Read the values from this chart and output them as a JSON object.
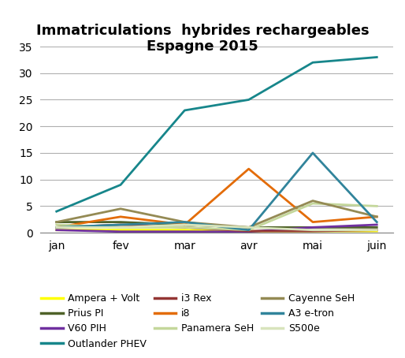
{
  "title": "Immatriculations  hybrides rechargeables\nEspagne 2015",
  "months": [
    "jan",
    "fev",
    "mar",
    "avr",
    "mai",
    "juin"
  ],
  "series_order": [
    "Ampera + Volt",
    "Prius PI",
    "V60 PIH",
    "Outlander PHEV",
    "i3 Rex",
    "i8",
    "Panamera SeH",
    "Cayenne SeH",
    "A3 e-tron",
    "S500e"
  ],
  "series": {
    "Ampera + Volt": [
      0.5,
      0.5,
      0.5,
      0.3,
      0.3,
      0.3
    ],
    "Prius PI": [
      2.0,
      2.0,
      1.5,
      1.0,
      1.0,
      1.0
    ],
    "V60 PIH": [
      0.5,
      0.2,
      0.2,
      0.2,
      1.0,
      1.5
    ],
    "Outlander PHEV": [
      4.0,
      9.0,
      23.0,
      25.0,
      32.0,
      33.0
    ],
    "i3 Rex": [
      1.0,
      1.5,
      1.0,
      0.3,
      0.3,
      0.5
    ],
    "i8": [
      1.0,
      3.0,
      1.5,
      12.0,
      2.0,
      3.0
    ],
    "Panamera SeH": [
      1.5,
      1.0,
      1.0,
      0.5,
      5.5,
      5.0
    ],
    "Cayenne SeH": [
      2.0,
      4.5,
      2.0,
      1.0,
      6.0,
      3.0
    ],
    "A3 e-tron": [
      1.0,
      1.5,
      2.0,
      0.5,
      15.0,
      2.0
    ],
    "S500e": [
      1.0,
      1.0,
      1.5,
      1.0,
      0.5,
      0.5
    ]
  },
  "colors": {
    "Ampera + Volt": "#FFFF00",
    "Prius PI": "#4f6228",
    "V60 PIH": "#7030a0",
    "Outlander PHEV": "#17868b",
    "i3 Rex": "#943634",
    "i8": "#e36c09",
    "Panamera SeH": "#c4d79b",
    "Cayenne SeH": "#948a54",
    "A3 e-tron": "#31849b",
    "S500e": "#d8e4bc"
  },
  "ylim": [
    0,
    35
  ],
  "yticks": [
    0,
    5,
    10,
    15,
    20,
    25,
    30,
    35
  ],
  "title_fontsize": 13,
  "legend_fontsize": 9,
  "tick_fontsize": 10,
  "figsize": [
    5.14,
    4.54
  ],
  "dpi": 100
}
